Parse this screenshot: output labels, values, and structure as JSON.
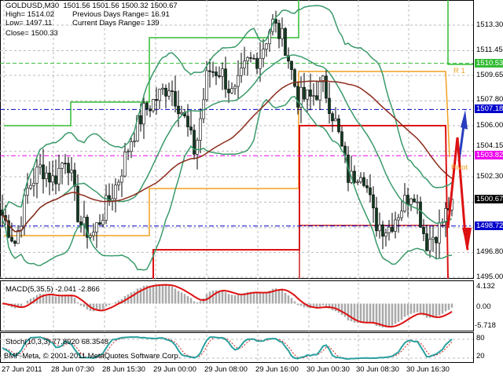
{
  "header": {
    "symbol_line": "GOLDUSD,M30  1501.56 1501.56 1500.32 1500.67",
    "high": "High= 1514.02",
    "prev_range": "Previous Days Range= 16.91",
    "low": "Low= 1497.11",
    "cur_range": "Current Days Range= 139",
    "close": "Close= 1500.33"
  },
  "price_axis": [
    "1513.30",
    "1511.45",
    "1509.65",
    "1507.80",
    "1506.00",
    "1504.15",
    "1502.30",
    "1496.80",
    "1495.00"
  ],
  "price_tags": [
    {
      "value": "1510.53",
      "price": 1510.53,
      "color": "#33bb33"
    },
    {
      "value": "1507.18",
      "price": 1507.18,
      "color": "#0000cc"
    },
    {
      "value": "1503.82",
      "price": 1503.82,
      "color": "#ee00ee"
    },
    {
      "value": "1500.67",
      "price": 1500.67,
      "color": "#000000"
    },
    {
      "value": "1498.72",
      "price": 1498.72,
      "color": "#0000cc"
    }
  ],
  "pivot_labels": {
    "r1": "R 1",
    "pivot": "Pivot"
  },
  "macd": {
    "label": "MACD(5,35,5) -2.041 -2.866",
    "axis": [
      "4.132",
      "0.00",
      "-5.718"
    ]
  },
  "stoch": {
    "label": "Stoch(10,3,3) 77.8920 68.3548",
    "axis_top": "80",
    "axis_top2": "100",
    "axis_bottom": "20",
    "axis_bottom2": "0"
  },
  "copyright": "BMF-Meta, © 2001-2011 MetaQuotes Software Corp.",
  "time_axis": [
    "27 Jun 2011",
    "28 Jun 07:30",
    "28 Jun 15:30",
    "29 Jun 00:00",
    "29 Jun 08:00",
    "29 Jun 16:00",
    "30 Jun 00:30",
    "30 Jun 08:30",
    "30 Jun 16:30"
  ],
  "chart_data": {
    "type": "candlestick",
    "symbol": "GOLDUSD",
    "timeframe": "M30",
    "ylim": [
      1495.0,
      1515.0
    ],
    "anchor_closes": [
      1499.5,
      1497.5,
      1501.5,
      1503.0,
      1502.0,
      1504.0,
      1499.0,
      1498.0,
      1500.0,
      1502.0,
      1505.0,
      1507.0,
      1508.0,
      1509.0,
      1507.0,
      1504.0,
      1510.0,
      1510.0,
      1508.0,
      1510.5,
      1511.0,
      1513.5,
      1512.0,
      1508.0,
      1508.0,
      1509.0,
      1506.0,
      1502.0,
      1503.0,
      1499.0,
      1498.5,
      1500.0,
      1501.5,
      1497.5,
      1498.5,
      1500.67
    ],
    "last": 1500.67
  }
}
